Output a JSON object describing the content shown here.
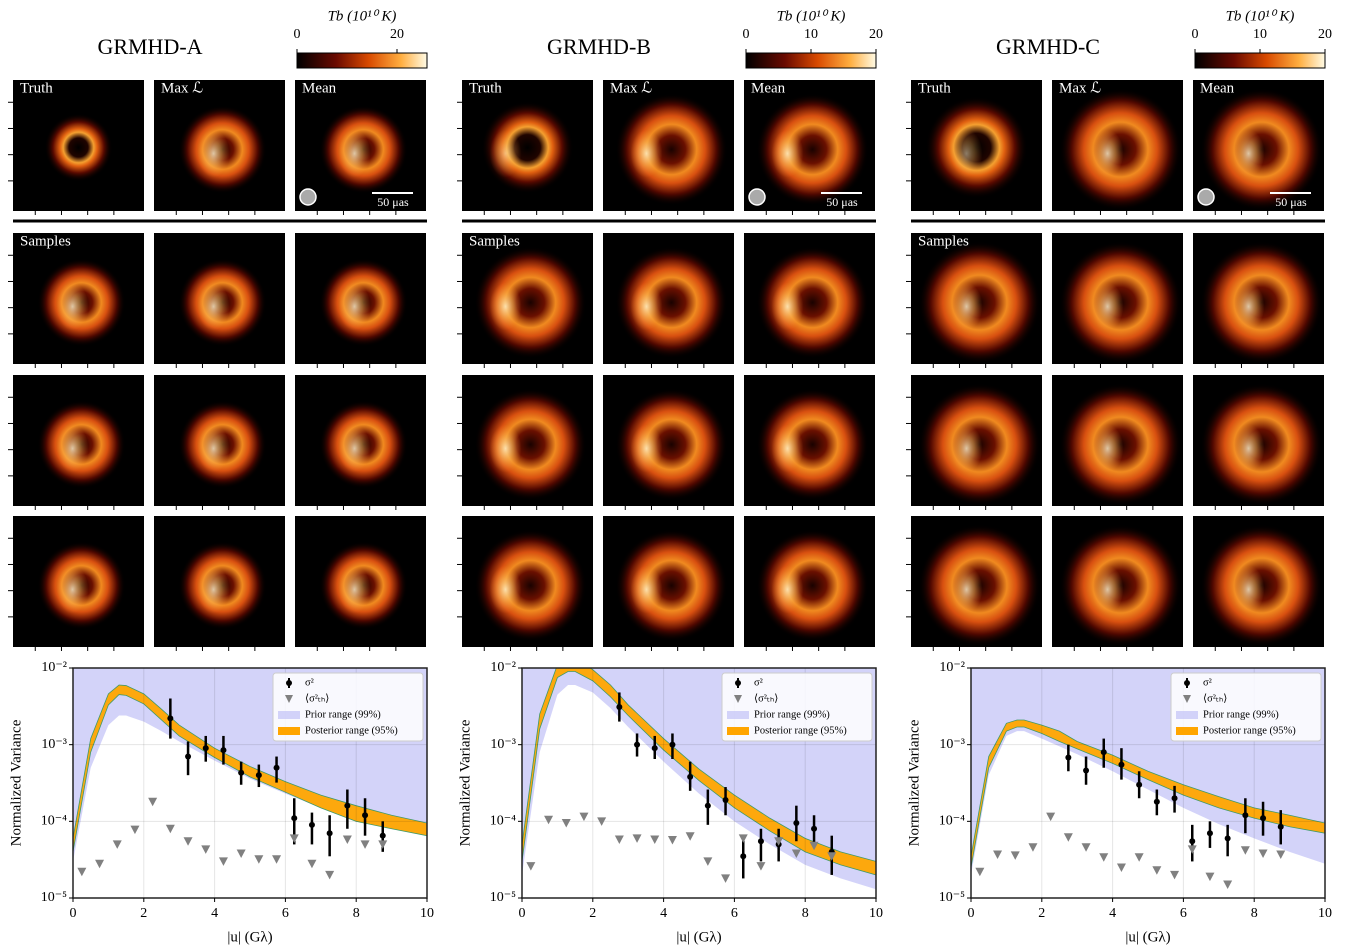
{
  "chart_data": [
    {
      "type": "scatter",
      "title": "GRMHD-A",
      "colorbar": {
        "label": "Tb (10¹⁰ K)",
        "lim": [
          0,
          26
        ],
        "ticks": [
          0,
          20
        ]
      },
      "image_labels": [
        "Truth",
        "Max ℒ",
        "Mean"
      ],
      "samples_label": "Samples",
      "scale_label": "50 μas",
      "xlabel": "|u| (Gλ)",
      "ylabel": "Normalized Variance",
      "xlim": [
        0,
        10
      ],
      "ylim": [
        1e-05,
        0.01
      ],
      "log_y": true,
      "grid": true,
      "xticks": [
        0,
        2,
        4,
        6,
        8,
        10
      ],
      "yticks": [
        {
          "value": 1e-05,
          "label": "10⁻⁵"
        },
        {
          "value": 0.0001,
          "label": "10⁻⁴"
        },
        {
          "value": 0.001,
          "label": "10⁻³"
        },
        {
          "value": 0.01,
          "label": "10⁻²"
        }
      ],
      "series": [
        {
          "name": "σ²",
          "color": "#000000",
          "marker": "errorbar",
          "x": [
            2.75,
            3.25,
            3.75,
            4.25,
            4.75,
            5.25,
            5.75,
            6.25,
            6.75,
            7.25,
            7.75,
            8.25,
            8.75
          ],
          "values": [
            0.0022,
            0.0007,
            0.0009,
            0.00085,
            0.00043,
            0.0004,
            0.0005,
            0.00011,
            9e-05,
            7e-05,
            0.00016,
            0.00012,
            6.5e-05
          ],
          "lower": [
            0.0012,
            0.0004,
            0.0006,
            0.00055,
            0.0003,
            0.00028,
            0.00032,
            5e-05,
            5e-05,
            3.5e-05,
            8e-05,
            6.5e-05,
            4e-05
          ],
          "upper": [
            0.004,
            0.0011,
            0.0013,
            0.0013,
            0.0006,
            0.00055,
            0.0007,
            0.0002,
            0.00013,
            0.00012,
            0.00026,
            0.0002,
            0.0001
          ]
        },
        {
          "name": "⟨σ²ₜₕ⟩",
          "color": "#808080",
          "marker": "triangle",
          "x": [
            0.25,
            0.75,
            1.25,
            1.75,
            2.25,
            2.75,
            3.25,
            3.75,
            4.25,
            4.75,
            5.25,
            5.75,
            6.25,
            6.75,
            7.25,
            7.75,
            8.25,
            8.75
          ],
          "values": [
            2.2e-05,
            2.8e-05,
            5e-05,
            7.8e-05,
            0.00018,
            8e-05,
            5.5e-05,
            4.3e-05,
            3e-05,
            3.8e-05,
            3.2e-05,
            3.2e-05,
            6e-05,
            2.8e-05,
            2e-05,
            5.8e-05,
            5e-05,
            5e-05
          ]
        },
        {
          "name": "Prior range (99%)",
          "color": "#c4c4f7",
          "marker": "band",
          "x": [
            0,
            0.5,
            1,
            1.3,
            1.5,
            2,
            2.5,
            3,
            4,
            5,
            6,
            7,
            8,
            9,
            10
          ],
          "lower": [
            3e-05,
            0.0005,
            0.0018,
            0.0024,
            0.0024,
            0.002,
            0.0015,
            0.0011,
            0.00062,
            0.00036,
            0.00023,
            0.00015,
            0.0001,
            8e-05,
            6.5e-05
          ],
          "upper": [
            0.01,
            0.01,
            0.01,
            0.01,
            0.01,
            0.01,
            0.01,
            0.01,
            0.01,
            0.01,
            0.01,
            0.01,
            0.01,
            0.01,
            0.01
          ]
        },
        {
          "name": "Posterior range (95%)",
          "color": "#ffa500",
          "marker": "band",
          "x": [
            0,
            0.5,
            1,
            1.3,
            1.5,
            2,
            2.5,
            3,
            4,
            5,
            6,
            7,
            8,
            9,
            10
          ],
          "lower": [
            4e-05,
            0.0008,
            0.0033,
            0.0045,
            0.0044,
            0.0034,
            0.0021,
            0.0013,
            0.00068,
            0.00038,
            0.00024,
            0.00015,
            0.0001,
            8e-05,
            6.5e-05
          ],
          "upper": [
            6e-05,
            0.0012,
            0.0046,
            0.006,
            0.0059,
            0.0046,
            0.0029,
            0.0018,
            0.0009,
            0.00052,
            0.00033,
            0.00022,
            0.00016,
            0.00012,
            9.5e-05
          ]
        }
      ]
    },
    {
      "type": "scatter",
      "title": "GRMHD-B",
      "colorbar": {
        "label": "Tb (10¹⁰ K)",
        "lim": [
          0,
          20
        ],
        "ticks": [
          0,
          10,
          20
        ]
      },
      "image_labels": [
        "Truth",
        "Max ℒ",
        "Mean"
      ],
      "samples_label": "Samples",
      "scale_label": "50 μas",
      "xlabel": "|u| (Gλ)",
      "ylabel": "Normalized Variance",
      "xlim": [
        0,
        10
      ],
      "ylim": [
        1e-05,
        0.01
      ],
      "log_y": true,
      "grid": true,
      "xticks": [
        0,
        2,
        4,
        6,
        8,
        10
      ],
      "yticks": [
        {
          "value": 1e-05,
          "label": "10⁻⁵"
        },
        {
          "value": 0.0001,
          "label": "10⁻⁴"
        },
        {
          "value": 0.001,
          "label": "10⁻³"
        },
        {
          "value": 0.01,
          "label": "10⁻²"
        }
      ],
      "series": [
        {
          "name": "σ²",
          "color": "#000000",
          "marker": "errorbar",
          "x": [
            2.75,
            3.25,
            3.75,
            4.25,
            4.75,
            5.25,
            5.75,
            6.25,
            6.75,
            7.25,
            7.75,
            8.25,
            8.75
          ],
          "values": [
            0.0031,
            0.001,
            0.0009,
            0.001,
            0.00038,
            0.00016,
            0.00019,
            3.5e-05,
            5.5e-05,
            5e-05,
            9.5e-05,
            8e-05,
            4e-05
          ],
          "lower": [
            0.002,
            0.0007,
            0.00065,
            0.00065,
            0.00025,
            9e-05,
            0.00012,
            1.8e-05,
            3e-05,
            3e-05,
            5.5e-05,
            5e-05,
            2e-05
          ],
          "upper": [
            0.0048,
            0.0014,
            0.0013,
            0.0014,
            0.0006,
            0.00026,
            0.00028,
            6e-05,
            8e-05,
            8e-05,
            0.00016,
            0.00012,
            6.5e-05
          ]
        },
        {
          "name": "⟨σ²ₜₕ⟩",
          "color": "#808080",
          "marker": "triangle",
          "x": [
            0.25,
            0.75,
            1.25,
            1.75,
            2.25,
            2.75,
            3.25,
            3.75,
            4.25,
            4.75,
            5.25,
            5.75,
            6.25,
            6.75,
            7.25,
            7.75,
            8.25,
            8.75
          ],
          "values": [
            2.6e-05,
            0.000105,
            9.5e-05,
            0.000115,
            0.0001,
            5.8e-05,
            6e-05,
            5.8e-05,
            5.7e-05,
            6.4e-05,
            3e-05,
            1.8e-05,
            6e-05,
            2.6e-05,
            5.5e-05,
            3.8e-05,
            4.8e-05,
            3.5e-05
          ]
        },
        {
          "name": "Prior range (99%)",
          "color": "#c4c4f7",
          "marker": "band",
          "x": [
            0,
            0.5,
            1,
            1.3,
            1.5,
            2,
            2.5,
            3,
            4,
            5,
            6,
            7,
            8,
            9,
            10
          ],
          "lower": [
            2e-05,
            0.0008,
            0.0045,
            0.006,
            0.006,
            0.0048,
            0.003,
            0.0017,
            0.0006,
            0.00023,
            0.0001,
            5e-05,
            2.7e-05,
            1.8e-05,
            1.3e-05
          ],
          "upper": [
            0.01,
            0.01,
            0.01,
            0.01,
            0.01,
            0.01,
            0.01,
            0.01,
            0.01,
            0.01,
            0.01,
            0.01,
            0.01,
            0.01,
            0.01
          ]
        },
        {
          "name": "Posterior range (95%)",
          "color": "#ffa500",
          "marker": "band",
          "x": [
            0,
            0.5,
            1,
            1.3,
            1.5,
            2,
            2.5,
            3,
            4,
            5,
            6,
            7,
            8,
            9,
            10
          ],
          "lower": [
            3e-05,
            0.0016,
            0.0075,
            0.009,
            0.009,
            0.0068,
            0.0042,
            0.0024,
            0.00085,
            0.00034,
            0.00015,
            7.5e-05,
            4e-05,
            2.7e-05,
            2e-05
          ],
          "upper": [
            5e-05,
            0.0025,
            0.011,
            0.013,
            0.013,
            0.0095,
            0.006,
            0.0033,
            0.0012,
            0.00048,
            0.00022,
            0.00011,
            6e-05,
            4e-05,
            3e-05
          ]
        }
      ]
    },
    {
      "type": "scatter",
      "title": "GRMHD-C",
      "colorbar": {
        "label": "Tb (10¹⁰ K)",
        "lim": [
          0,
          20
        ],
        "ticks": [
          0,
          10,
          20
        ]
      },
      "image_labels": [
        "Truth",
        "Max ℒ",
        "Mean"
      ],
      "samples_label": "Samples",
      "scale_label": "50 μas",
      "xlabel": "|u| (Gλ)",
      "ylabel": "Normalized Variance",
      "xlim": [
        0,
        10
      ],
      "ylim": [
        1e-05,
        0.01
      ],
      "log_y": true,
      "grid": true,
      "xticks": [
        0,
        2,
        4,
        6,
        8,
        10
      ],
      "yticks": [
        {
          "value": 1e-05,
          "label": "10⁻⁵"
        },
        {
          "value": 0.0001,
          "label": "10⁻⁴"
        },
        {
          "value": 0.001,
          "label": "10⁻³"
        },
        {
          "value": 0.01,
          "label": "10⁻²"
        }
      ],
      "series": [
        {
          "name": "σ²",
          "color": "#000000",
          "marker": "errorbar",
          "x": [
            2.75,
            3.25,
            3.75,
            4.25,
            4.75,
            5.25,
            5.75,
            6.25,
            6.75,
            7.25,
            7.75,
            8.25,
            8.75
          ],
          "values": [
            0.00068,
            0.00046,
            0.0008,
            0.00055,
            0.0003,
            0.00018,
            0.0002,
            5.5e-05,
            7e-05,
            6e-05,
            0.00012,
            0.00011,
            8.5e-05
          ],
          "lower": [
            0.00045,
            0.0003,
            0.0005,
            0.00035,
            0.0002,
            0.00012,
            0.00013,
            3e-05,
            4.5e-05,
            3.5e-05,
            7e-05,
            6.5e-05,
            5e-05
          ],
          "upper": [
            0.001,
            0.0007,
            0.0012,
            0.0009,
            0.00045,
            0.00026,
            0.00029,
            9e-05,
            0.0001,
            9e-05,
            0.0002,
            0.00018,
            0.00014
          ]
        },
        {
          "name": "⟨σ²ₜₕ⟩",
          "color": "#808080",
          "marker": "triangle",
          "x": [
            0.25,
            0.75,
            1.25,
            1.75,
            2.25,
            2.75,
            3.25,
            3.75,
            4.25,
            4.75,
            5.25,
            5.75,
            6.25,
            6.75,
            7.25,
            7.75,
            8.25,
            8.75
          ],
          "values": [
            2.2e-05,
            3.7e-05,
            3.6e-05,
            4.6e-05,
            0.000115,
            6.2e-05,
            4.6e-05,
            3.4e-05,
            2.5e-05,
            3.4e-05,
            2.3e-05,
            2e-05,
            4.3e-05,
            1.9e-05,
            1.5e-05,
            4.2e-05,
            3.8e-05,
            3.7e-05
          ]
        },
        {
          "name": "Prior range (99%)",
          "color": "#c4c4f7",
          "marker": "band",
          "x": [
            0,
            0.5,
            1,
            1.3,
            1.5,
            2,
            2.5,
            3,
            4,
            5,
            6,
            7,
            8,
            9,
            10
          ],
          "lower": [
            2e-05,
            0.0004,
            0.0013,
            0.0015,
            0.0015,
            0.0012,
            0.00095,
            0.00075,
            0.00045,
            0.00026,
            0.00015,
            9.2e-05,
            6e-05,
            4e-05,
            2.8e-05
          ],
          "upper": [
            0.01,
            0.01,
            0.01,
            0.01,
            0.01,
            0.01,
            0.01,
            0.01,
            0.01,
            0.01,
            0.01,
            0.01,
            0.01,
            0.01,
            0.01
          ]
        },
        {
          "name": "Posterior range (95%)",
          "color": "#ffa500",
          "marker": "band",
          "x": [
            0,
            0.5,
            1,
            1.3,
            1.5,
            2,
            2.5,
            3,
            4,
            5,
            6,
            7,
            8,
            9,
            10
          ],
          "lower": [
            2.5e-05,
            0.0005,
            0.0015,
            0.0017,
            0.0017,
            0.0014,
            0.0011,
            0.00088,
            0.00057,
            0.00035,
            0.00022,
            0.00015,
            0.00011,
            8.5e-05,
            7e-05
          ],
          "upper": [
            3.5e-05,
            0.0007,
            0.0019,
            0.0021,
            0.0021,
            0.0018,
            0.0015,
            0.0011,
            0.00073,
            0.00045,
            0.0003,
            0.00021,
            0.00015,
            0.00012,
            9.5e-05
          ]
        }
      ]
    }
  ]
}
